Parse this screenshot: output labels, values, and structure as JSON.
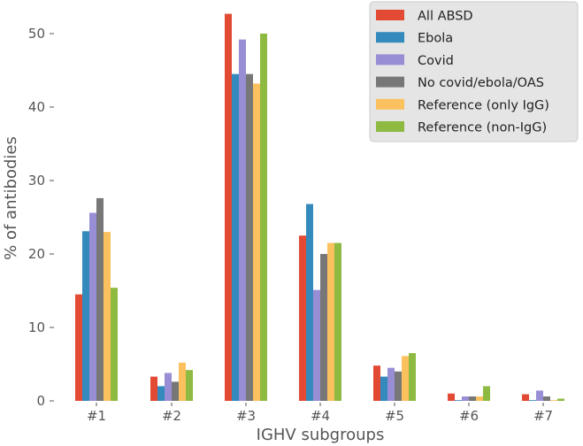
{
  "chart_data": {
    "type": "bar",
    "title": "",
    "xlabel": "IGHV subgroups",
    "ylabel": "% of antibodies",
    "categories": [
      "#1",
      "#2",
      "#3",
      "#4",
      "#5",
      "#6",
      "#7"
    ],
    "ylim": [
      0,
      55
    ],
    "yticks": [
      0,
      10,
      20,
      30,
      40,
      50
    ],
    "grid": false,
    "legend_position": "top-right",
    "series": [
      {
        "name": "All ABSD",
        "color": "#e24a33",
        "values": [
          14.5,
          3.3,
          52.7,
          22.5,
          4.8,
          1.0,
          0.9
        ]
      },
      {
        "name": "Ebola",
        "color": "#348abd",
        "values": [
          23.1,
          2.0,
          44.5,
          26.8,
          3.3,
          0.1,
          0.1
        ]
      },
      {
        "name": "Covid",
        "color": "#988ed5",
        "values": [
          25.6,
          3.8,
          49.2,
          15.1,
          4.5,
          0.6,
          1.4
        ]
      },
      {
        "name": "No covid/ebola/OAS",
        "color": "#777777",
        "values": [
          27.6,
          2.6,
          44.5,
          20.0,
          4.0,
          0.6,
          0.6
        ]
      },
      {
        "name": "Reference (only IgG)",
        "color": "#fbc15e",
        "values": [
          23.0,
          5.2,
          43.2,
          21.5,
          6.1,
          0.6,
          0.1
        ]
      },
      {
        "name": "Reference (non-IgG)",
        "color": "#8eba42",
        "values": [
          15.4,
          4.2,
          50.0,
          21.5,
          6.5,
          2.0,
          0.3
        ]
      }
    ]
  }
}
